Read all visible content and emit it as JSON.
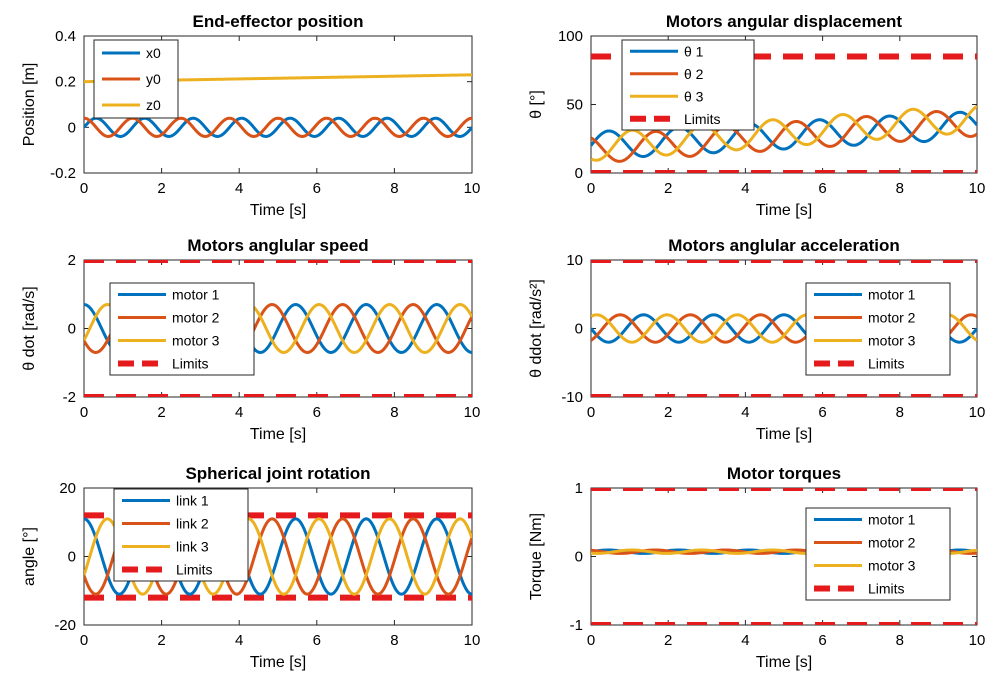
{
  "colors": {
    "series1": "#0072BD",
    "series2": "#D95319",
    "series3": "#EDB120",
    "limits": "#E41A1C"
  },
  "chart_data": [
    {
      "type": "line",
      "title": "End-effector position",
      "xlabel": "Time [s]",
      "ylabel": "Position [m]",
      "xlim": [
        0,
        10
      ],
      "ylim": [
        -0.2,
        0.4
      ],
      "xticks": [
        "0",
        "2",
        "4",
        "6",
        "8",
        "10"
      ],
      "yticks": [
        "-0.2",
        "0",
        "0.2",
        "0.4"
      ],
      "ytick_values": [
        -0.2,
        0,
        0.2,
        0.4
      ],
      "legend": "top-left",
      "series": [
        {
          "name": "x0",
          "kind": "sine",
          "offset": 0,
          "amp": 0.04,
          "freq": 0.8,
          "phase": 0
        },
        {
          "name": "y0",
          "kind": "sine",
          "offset": 0,
          "amp": 0.04,
          "freq": 0.8,
          "phase": 1.57
        },
        {
          "name": "z0",
          "kind": "linear",
          "y0": 0.2,
          "y1": 0.23
        }
      ],
      "limits": null
    },
    {
      "type": "line",
      "title": "Motors angular displacement",
      "xlabel": "Time [s]",
      "ylabel": "θ [°]",
      "xlim": [
        0,
        10
      ],
      "ylim": [
        0,
        100
      ],
      "xticks": [
        "0",
        "2",
        "4",
        "6",
        "8",
        "10"
      ],
      "yticks": [
        "0",
        "50",
        "100"
      ],
      "ytick_values": [
        0,
        50,
        100
      ],
      "legend": "top-left",
      "series": [
        {
          "name": "θ 1",
          "kind": "sine",
          "offset": 20,
          "offset_end": 35,
          "amp": 10,
          "freq": 0.55,
          "phase": 0
        },
        {
          "name": "θ 2",
          "kind": "sine",
          "offset": 17,
          "offset_end": 37,
          "amp": 10,
          "freq": 0.55,
          "phase": 2.1
        },
        {
          "name": "θ 3",
          "kind": "sine",
          "offset": 19,
          "offset_end": 40,
          "amp": 10,
          "freq": 0.55,
          "phase": 4.2
        }
      ],
      "limits": {
        "name": "Limits",
        "values": [
          85,
          0
        ]
      }
    },
    {
      "type": "line",
      "title": "Motors anglular speed",
      "xlabel": "Time [s]",
      "ylabel": "θ dot [rad/s]",
      "xlim": [
        0,
        10
      ],
      "ylim": [
        -2,
        2
      ],
      "xticks": [
        "0",
        "2",
        "4",
        "6",
        "8",
        "10"
      ],
      "yticks": [
        "-2",
        "0",
        "2"
      ],
      "ytick_values": [
        -2,
        0,
        2
      ],
      "legend": "left",
      "series": [
        {
          "name": "motor 1",
          "kind": "sine",
          "offset": 0,
          "amp": 0.7,
          "freq": 0.55,
          "phase": 1.57
        },
        {
          "name": "motor 2",
          "kind": "sine",
          "offset": 0,
          "amp": 0.7,
          "freq": 0.55,
          "phase": 3.67
        },
        {
          "name": "motor 3",
          "kind": "sine",
          "offset": 0,
          "amp": 0.7,
          "freq": 0.55,
          "phase": 5.77
        }
      ],
      "limits": {
        "name": "Limits",
        "values": [
          2,
          -2
        ]
      }
    },
    {
      "type": "line",
      "title": "Motors anglular acceleration",
      "xlabel": "Time [s]",
      "ylabel": "θ ddot [rad/s²]",
      "xlim": [
        0,
        10
      ],
      "ylim": [
        -10,
        10
      ],
      "xticks": [
        "0",
        "2",
        "4",
        "6",
        "8",
        "10"
      ],
      "yticks": [
        "-10",
        "0",
        "10"
      ],
      "ytick_values": [
        -10,
        0,
        10
      ],
      "legend": "right",
      "series": [
        {
          "name": "motor 1",
          "kind": "sine",
          "offset": 0,
          "amp": 2,
          "freq": 0.55,
          "phase": 3.14
        },
        {
          "name": "motor 2",
          "kind": "sine",
          "offset": 0,
          "amp": 2,
          "freq": 0.55,
          "phase": 5.24
        },
        {
          "name": "motor 3",
          "kind": "sine",
          "offset": 0,
          "amp": 2,
          "freq": 0.55,
          "phase": 1.05
        }
      ],
      "limits": {
        "name": "Limits",
        "values": [
          10,
          -10
        ]
      }
    },
    {
      "type": "line",
      "title": "Spherical joint rotation",
      "xlabel": "Time [s]",
      "ylabel": "angle [°]",
      "xlim": [
        0,
        10
      ],
      "ylim": [
        -20,
        20
      ],
      "xticks": [
        "0",
        "2",
        "4",
        "6",
        "8",
        "10"
      ],
      "yticks": [
        "-20",
        "0",
        "20"
      ],
      "ytick_values": [
        -20,
        0,
        20
      ],
      "legend": "top-left",
      "series": [
        {
          "name": "link 1",
          "kind": "sine",
          "offset": 0,
          "amp": 11,
          "freq": 0.55,
          "phase": 1.57
        },
        {
          "name": "link 2",
          "kind": "sine",
          "offset": 0,
          "amp": 11,
          "freq": 0.55,
          "phase": 3.67
        },
        {
          "name": "link 3",
          "kind": "sine",
          "offset": 0,
          "amp": 11,
          "freq": 0.55,
          "phase": 5.77
        }
      ],
      "limits": {
        "name": "Limits",
        "values": [
          12,
          -12
        ]
      }
    },
    {
      "type": "line",
      "title": "Motor torques",
      "xlabel": "Time [s]",
      "ylabel": "Torque [Nm]",
      "xlim": [
        0,
        10
      ],
      "ylim": [
        -1,
        1
      ],
      "xticks": [
        "0",
        "2",
        "4",
        "6",
        "8",
        "10"
      ],
      "yticks": [
        "-1",
        "0",
        "1"
      ],
      "ytick_values": [
        -1,
        0,
        1
      ],
      "legend": "right",
      "series": [
        {
          "name": "motor 1",
          "kind": "sine",
          "offset": 0.07,
          "amp": 0.025,
          "freq": 0.55,
          "phase": 0
        },
        {
          "name": "motor 2",
          "kind": "sine",
          "offset": 0.07,
          "amp": 0.025,
          "freq": 0.55,
          "phase": 2.1
        },
        {
          "name": "motor 3",
          "kind": "sine",
          "offset": 0.07,
          "amp": 0.025,
          "freq": 0.55,
          "phase": 4.2
        }
      ],
      "limits": {
        "name": "Limits",
        "values": [
          1,
          -1
        ]
      }
    }
  ]
}
